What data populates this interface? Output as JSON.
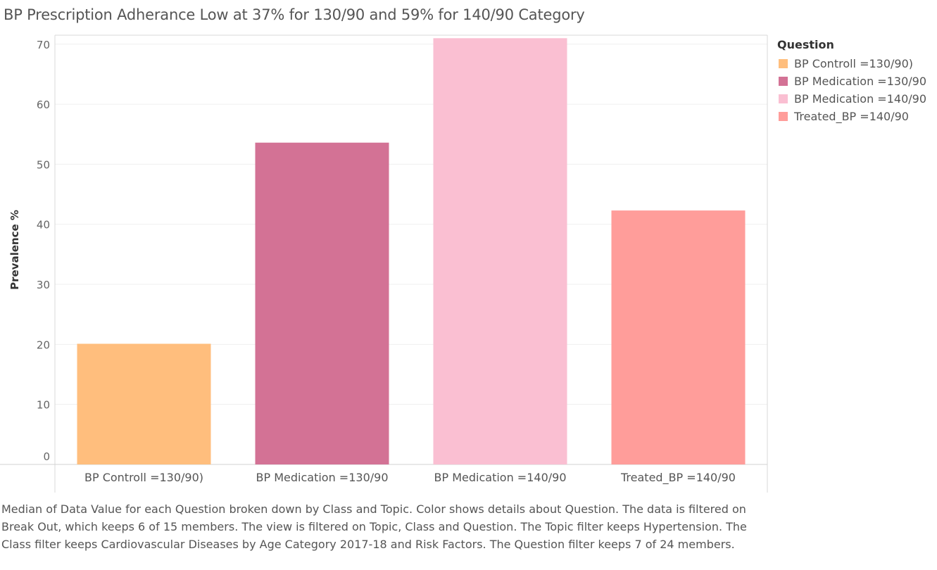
{
  "chart_data": {
    "type": "bar",
    "title": "BP Prescription Adherance Low at 37% for 130/90  and 59% for 140/90 Category",
    "ylabel": "Prevalence %",
    "xlabel": "",
    "ylim": [
      0,
      71.5
    ],
    "yticks": [
      0,
      10,
      20,
      30,
      40,
      50,
      60,
      70
    ],
    "categories": [
      "BP Controll =130/90)",
      "BP Medication =130/90",
      "BP Medication =140/90",
      "Treated_BP =140/90"
    ],
    "values": [
      20.1,
      53.6,
      71.0,
      42.3
    ],
    "colors": [
      "#ffbe7d",
      "#d37295",
      "#fabfd2",
      "#ff9d9a"
    ],
    "grid": "horizontal",
    "legend": {
      "title": "Question",
      "placement": "right",
      "items": [
        {
          "label": "BP Controll =130/90)",
          "color": "#ffbe7d"
        },
        {
          "label": "BP Medication =130/90",
          "color": "#d37295"
        },
        {
          "label": "BP Medication =140/90",
          "color": "#fabfd2"
        },
        {
          "label": "Treated_BP =140/90",
          "color": "#ff9d9a"
        }
      ]
    }
  },
  "caption": "Median of Data Value for each Question broken down by Class and Topic.  Color shows details about Question. The data is filtered on Break Out, which keeps 6 of 15 members. The view is filtered on Topic, Class and Question. The Topic filter keeps Hypertension. The Class filter keeps Cardiovascular Diseases by Age Category 2017-18 and Risk Factors. The Question filter keeps 7 of 24 members."
}
